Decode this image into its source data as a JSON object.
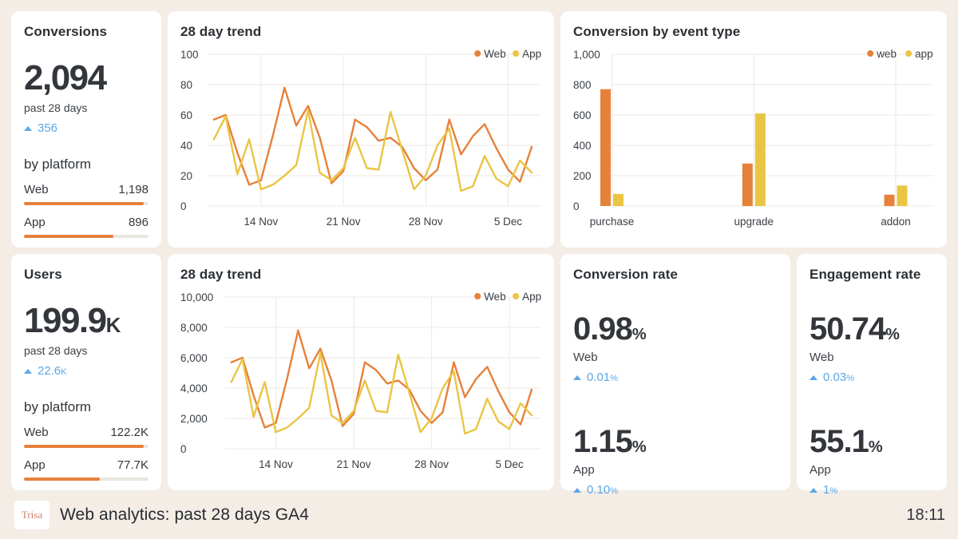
{
  "colors": {
    "web": "#E6813A",
    "app": "#E9C544",
    "delta": "#5CA7E8",
    "grid": "#EDEAE3",
    "track": "#EAE7E1"
  },
  "cards": {
    "conversions": {
      "title": "Conversions",
      "value": "2,094",
      "value_suffix": "",
      "period": "past 28 days",
      "delta": "356",
      "delta_suffix": "",
      "breakdown_label": "by platform",
      "platforms": [
        {
          "label": "Web",
          "value": "1,198",
          "pct": 96
        },
        {
          "label": "App",
          "value": "896",
          "pct": 72
        }
      ]
    },
    "users": {
      "title": "Users",
      "value": "199.9",
      "value_suffix": "K",
      "period": "past 28 days",
      "delta": "22.6",
      "delta_suffix": "K",
      "breakdown_label": "by platform",
      "platforms": [
        {
          "label": "Web",
          "value": "122.2K",
          "pct": 96
        },
        {
          "label": "App",
          "value": "77.7K",
          "pct": 61
        }
      ]
    },
    "conversions_trend": {
      "title": "28 day trend"
    },
    "users_trend": {
      "title": "28 day trend"
    },
    "event_type": {
      "title": "Conversion by event type"
    },
    "conversion_rate": {
      "title": "Conversion rate",
      "metrics": [
        {
          "value": "0.98",
          "suffix": "%",
          "label": "Web",
          "delta": "0.01",
          "delta_suffix": "%"
        },
        {
          "value": "1.15",
          "suffix": "%",
          "label": "App",
          "delta": "0.10",
          "delta_suffix": "%"
        }
      ]
    },
    "engagement_rate": {
      "title": "Engagement rate",
      "metrics": [
        {
          "value": "50.74",
          "suffix": "%",
          "label": "Web",
          "delta": "0.03",
          "delta_suffix": "%"
        },
        {
          "value": "55.1",
          "suffix": "%",
          "label": "App",
          "delta": "1",
          "delta_suffix": "%"
        }
      ]
    }
  },
  "chart_data": {
    "conversions_trend": {
      "type": "line",
      "title": "28 day trend",
      "y_max": 100,
      "y_ticks": [
        0,
        20,
        40,
        60,
        80,
        100
      ],
      "y_tick_labels": [
        "0",
        "20",
        "40",
        "60",
        "80",
        "100"
      ],
      "x_tick_labels": [
        "14 Nov",
        "21 Nov",
        "28 Nov",
        "5 Dec"
      ],
      "x_tick_indices": [
        4,
        11,
        18,
        25
      ],
      "legend_position": "top-right",
      "series": [
        {
          "name": "Web",
          "color": "web",
          "values": [
            57,
            60,
            35,
            14,
            17,
            46,
            78,
            53,
            66,
            45,
            15,
            23,
            57,
            52,
            43,
            45,
            39,
            25,
            17,
            24,
            57,
            34,
            46,
            54,
            38,
            24,
            16,
            39
          ]
        },
        {
          "name": "App",
          "color": "app",
          "values": [
            44,
            59,
            21,
            44,
            11,
            14,
            20,
            27,
            63,
            22,
            17,
            25,
            45,
            25,
            24,
            62,
            37,
            11,
            20,
            40,
            51,
            10,
            13,
            33,
            18,
            13,
            30,
            22
          ]
        }
      ]
    },
    "users_trend": {
      "type": "line",
      "title": "28 day trend",
      "y_max": 10000,
      "y_ticks": [
        0,
        2000,
        4000,
        6000,
        8000,
        10000
      ],
      "y_tick_labels": [
        "0",
        "2,000",
        "4,000",
        "6,000",
        "8,000",
        "10,000"
      ],
      "x_tick_labels": [
        "14 Nov",
        "21 Nov",
        "28 Nov",
        "5 Dec"
      ],
      "x_tick_indices": [
        4,
        11,
        18,
        25
      ],
      "legend_position": "top-right",
      "series": [
        {
          "name": "Web",
          "color": "web",
          "values": [
            5700,
            6000,
            3500,
            1400,
            1700,
            4600,
            7800,
            5300,
            6600,
            4500,
            1500,
            2300,
            5700,
            5200,
            4300,
            4500,
            3900,
            2500,
            1700,
            2400,
            5700,
            3400,
            4600,
            5400,
            3800,
            2400,
            1600,
            3900
          ]
        },
        {
          "name": "App",
          "color": "app",
          "values": [
            4400,
            5900,
            2100,
            4400,
            1100,
            1400,
            2000,
            2700,
            6300,
            2200,
            1700,
            2500,
            4500,
            2500,
            2400,
            6200,
            3700,
            1100,
            2000,
            4000,
            5100,
            1000,
            1300,
            3300,
            1800,
            1300,
            3000,
            2200
          ]
        }
      ]
    },
    "event_type": {
      "type": "bar",
      "title": "Conversion by event type",
      "y_max": 1000,
      "y_ticks": [
        0,
        200,
        400,
        600,
        800,
        1000
      ],
      "y_tick_labels": [
        "0",
        "200",
        "400",
        "600",
        "800",
        "1,000"
      ],
      "categories": [
        "purchase",
        "upgrade",
        "addon"
      ],
      "legend_position": "top-right",
      "series": [
        {
          "name": "web",
          "color": "web",
          "values": [
            770,
            280,
            75
          ]
        },
        {
          "name": "app",
          "color": "app",
          "values": [
            80,
            610,
            135
          ]
        }
      ]
    }
  },
  "footer": {
    "logo": "Trisa",
    "title": "Web analytics: past 28 days GA4",
    "time": "18:11"
  }
}
